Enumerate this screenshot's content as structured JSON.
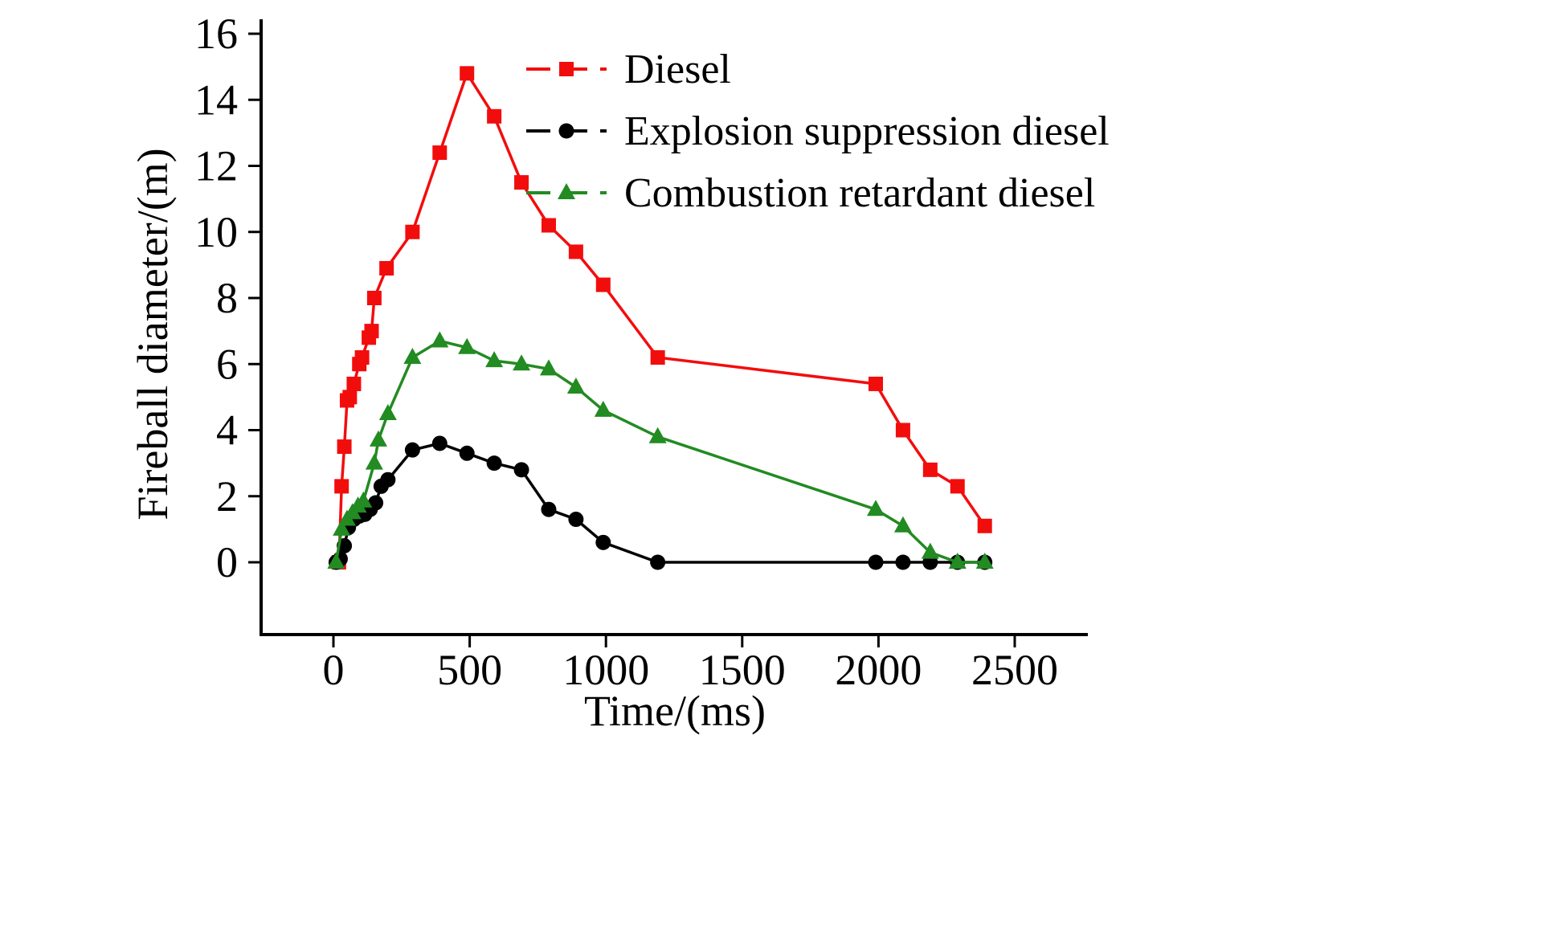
{
  "figure": {
    "background": "#ffffff"
  },
  "chart_data": {
    "type": "line",
    "title": "",
    "xlabel": "Time/(ms)",
    "ylabel": "Fireball diameter/(m)",
    "xlim": [
      -265,
      2760
    ],
    "ylim": [
      -2.2,
      16.3
    ],
    "xticks": [
      "0",
      "500",
      "1000",
      "1500",
      "2000",
      "2500"
    ],
    "xtick_values": [
      0,
      500,
      1000,
      1500,
      2000,
      2500
    ],
    "yticks": [
      "0",
      "2",
      "4",
      "6",
      "8",
      "10",
      "12",
      "14",
      "16"
    ],
    "ytick_values": [
      0,
      2,
      4,
      6,
      8,
      10,
      12,
      14,
      16
    ],
    "grid": false,
    "legend_position": "top-center-inside",
    "axis_color": "#000000",
    "series": [
      {
        "name": "Diesel",
        "color": "#f20d0d",
        "marker": "square",
        "points": [
          [
            20,
            0
          ],
          [
            30,
            2.3
          ],
          [
            40,
            3.5
          ],
          [
            50,
            4.9
          ],
          [
            60,
            5.0
          ],
          [
            75,
            5.4
          ],
          [
            95,
            6.0
          ],
          [
            105,
            6.2
          ],
          [
            130,
            6.8
          ],
          [
            140,
            7.0
          ],
          [
            150,
            8.0
          ],
          [
            195,
            8.9
          ],
          [
            290,
            10.0
          ],
          [
            390,
            12.4
          ],
          [
            490,
            14.8
          ],
          [
            590,
            13.5
          ],
          [
            690,
            11.5
          ],
          [
            790,
            10.2
          ],
          [
            890,
            9.4
          ],
          [
            990,
            8.4
          ],
          [
            1190,
            6.2
          ],
          [
            1990,
            5.4
          ],
          [
            2090,
            4.0
          ],
          [
            2190,
            2.8
          ],
          [
            2290,
            2.3
          ],
          [
            2390,
            1.1
          ]
        ]
      },
      {
        "name": "Explosion suppression diesel",
        "color": "#000000",
        "marker": "circle",
        "points": [
          [
            10,
            0
          ],
          [
            25,
            0.1
          ],
          [
            40,
            0.5
          ],
          [
            55,
            1.05
          ],
          [
            75,
            1.3
          ],
          [
            95,
            1.4
          ],
          [
            115,
            1.45
          ],
          [
            135,
            1.6
          ],
          [
            155,
            1.8
          ],
          [
            175,
            2.3
          ],
          [
            200,
            2.5
          ],
          [
            290,
            3.4
          ],
          [
            390,
            3.6
          ],
          [
            490,
            3.3
          ],
          [
            590,
            3.0
          ],
          [
            690,
            2.8
          ],
          [
            790,
            1.6
          ],
          [
            890,
            1.3
          ],
          [
            990,
            0.6
          ],
          [
            1190,
            0
          ],
          [
            1990,
            0
          ],
          [
            2090,
            0
          ],
          [
            2190,
            0
          ],
          [
            2290,
            0
          ],
          [
            2390,
            0
          ]
        ]
      },
      {
        "name": "Combustion retardant diesel",
        "color": "#228B22",
        "marker": "triangle-up",
        "points": [
          [
            10,
            0
          ],
          [
            30,
            1.0
          ],
          [
            50,
            1.3
          ],
          [
            70,
            1.5
          ],
          [
            90,
            1.7
          ],
          [
            110,
            1.85
          ],
          [
            150,
            3.0
          ],
          [
            165,
            3.7
          ],
          [
            200,
            4.5
          ],
          [
            290,
            6.2
          ],
          [
            390,
            6.7
          ],
          [
            490,
            6.5
          ],
          [
            590,
            6.1
          ],
          [
            690,
            6.0
          ],
          [
            790,
            5.85
          ],
          [
            890,
            5.3
          ],
          [
            990,
            4.6
          ],
          [
            1190,
            3.8
          ],
          [
            1990,
            1.6
          ],
          [
            2090,
            1.1
          ],
          [
            2190,
            0.3
          ],
          [
            2290,
            0
          ],
          [
            2390,
            0
          ]
        ]
      }
    ]
  }
}
